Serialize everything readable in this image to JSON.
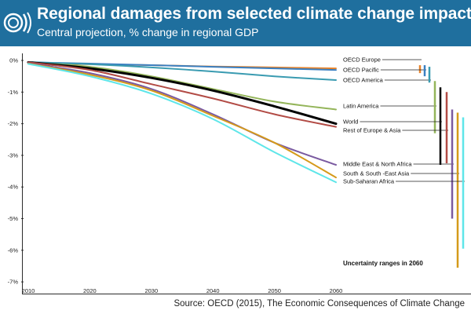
{
  "header": {
    "title": "Regional damages from selected climate change impacts",
    "subtitle": "Central projection, % change in regional GDP",
    "background": "#1f6f9e"
  },
  "footer": {
    "source": "Source: OECD (2015), The Economic Consequences of Climate Change"
  },
  "chart_data": {
    "type": "line",
    "title": "Regional damages from selected climate change impacts",
    "subtitle": "Central projection, % change in regional GDP",
    "x_ticks": [
      2010,
      2020,
      2030,
      2040,
      2050,
      2060
    ],
    "x_tick_labels": [
      "2010",
      "2020",
      "2030",
      "2040",
      "2050",
      "2060"
    ],
    "y_ticks": [
      0,
      -1,
      -2,
      -3,
      -4,
      -5,
      -6,
      -7
    ],
    "y_tick_labels": [
      "0%",
      "-1%",
      "-2%",
      "-3%",
      "-4%",
      "-5%",
      "-6%",
      "-7%"
    ],
    "xlim": [
      2010,
      2060
    ],
    "ylim": [
      -7,
      0
    ],
    "grid": false,
    "range_title": "Uncertainty ranges in 2060",
    "series": [
      {
        "name": "OECD Europe",
        "color": "#e8832a",
        "x": [
          2010,
          2020,
          2030,
          2040,
          2050,
          2060
        ],
        "y": [
          -0.1,
          -0.12,
          -0.15,
          -0.19,
          -0.22,
          -0.25
        ],
        "range": [
          -0.15,
          -0.4
        ]
      },
      {
        "name": "OECD Pacific",
        "color": "#3a7fc1",
        "x": [
          2010,
          2020,
          2030,
          2040,
          2050,
          2060
        ],
        "y": [
          -0.06,
          -0.1,
          -0.15,
          -0.2,
          -0.25,
          -0.3
        ],
        "range": [
          -0.15,
          -0.5
        ]
      },
      {
        "name": "OECD America",
        "color": "#3a9bb1",
        "x": [
          2010,
          2020,
          2030,
          2040,
          2050,
          2060
        ],
        "y": [
          -0.05,
          -0.12,
          -0.22,
          -0.35,
          -0.5,
          -0.62
        ],
        "range": [
          -0.2,
          -0.7
        ]
      },
      {
        "name": "Latin America",
        "color": "#94b55a",
        "x": [
          2010,
          2020,
          2030,
          2040,
          2050,
          2060
        ],
        "y": [
          -0.07,
          -0.2,
          -0.5,
          -0.9,
          -1.3,
          -1.55
        ],
        "range": [
          -0.65,
          -2.3
        ]
      },
      {
        "name": "World",
        "color": "#000000",
        "x": [
          2010,
          2020,
          2030,
          2040,
          2050,
          2060
        ],
        "y": [
          -0.06,
          -0.25,
          -0.55,
          -0.95,
          -1.45,
          -2.0
        ],
        "range": [
          -0.85,
          -3.3
        ]
      },
      {
        "name": "Rest of Europe & Asia",
        "color": "#b24b45",
        "x": [
          2010,
          2020,
          2030,
          2040,
          2050,
          2060
        ],
        "y": [
          -0.06,
          -0.3,
          -0.75,
          -1.2,
          -1.7,
          -2.1
        ],
        "range": [
          -1.0,
          -3.25
        ]
      },
      {
        "name": "Middle East & North  Africa",
        "color": "#7a5aa0",
        "x": [
          2010,
          2020,
          2030,
          2040,
          2050,
          2060
        ],
        "y": [
          -0.09,
          -0.4,
          -0.9,
          -1.7,
          -2.6,
          -3.3
        ],
        "range": [
          -1.55,
          -5.0
        ]
      },
      {
        "name": "South & South -East Asia",
        "color": "#d59a1a",
        "x": [
          2010,
          2020,
          2030,
          2040,
          2050,
          2060
        ],
        "y": [
          -0.1,
          -0.45,
          -0.95,
          -1.75,
          -2.6,
          -3.7
        ],
        "range": [
          -1.65,
          -6.55
        ]
      },
      {
        "name": "Sub-Saharan  Africa",
        "color": "#5ee6e9",
        "x": [
          2010,
          2020,
          2030,
          2040,
          2050,
          2060
        ],
        "y": [
          -0.11,
          -0.5,
          -1.05,
          -1.85,
          -2.9,
          -3.85
        ],
        "range": [
          -1.8,
          -5.95
        ]
      }
    ]
  }
}
